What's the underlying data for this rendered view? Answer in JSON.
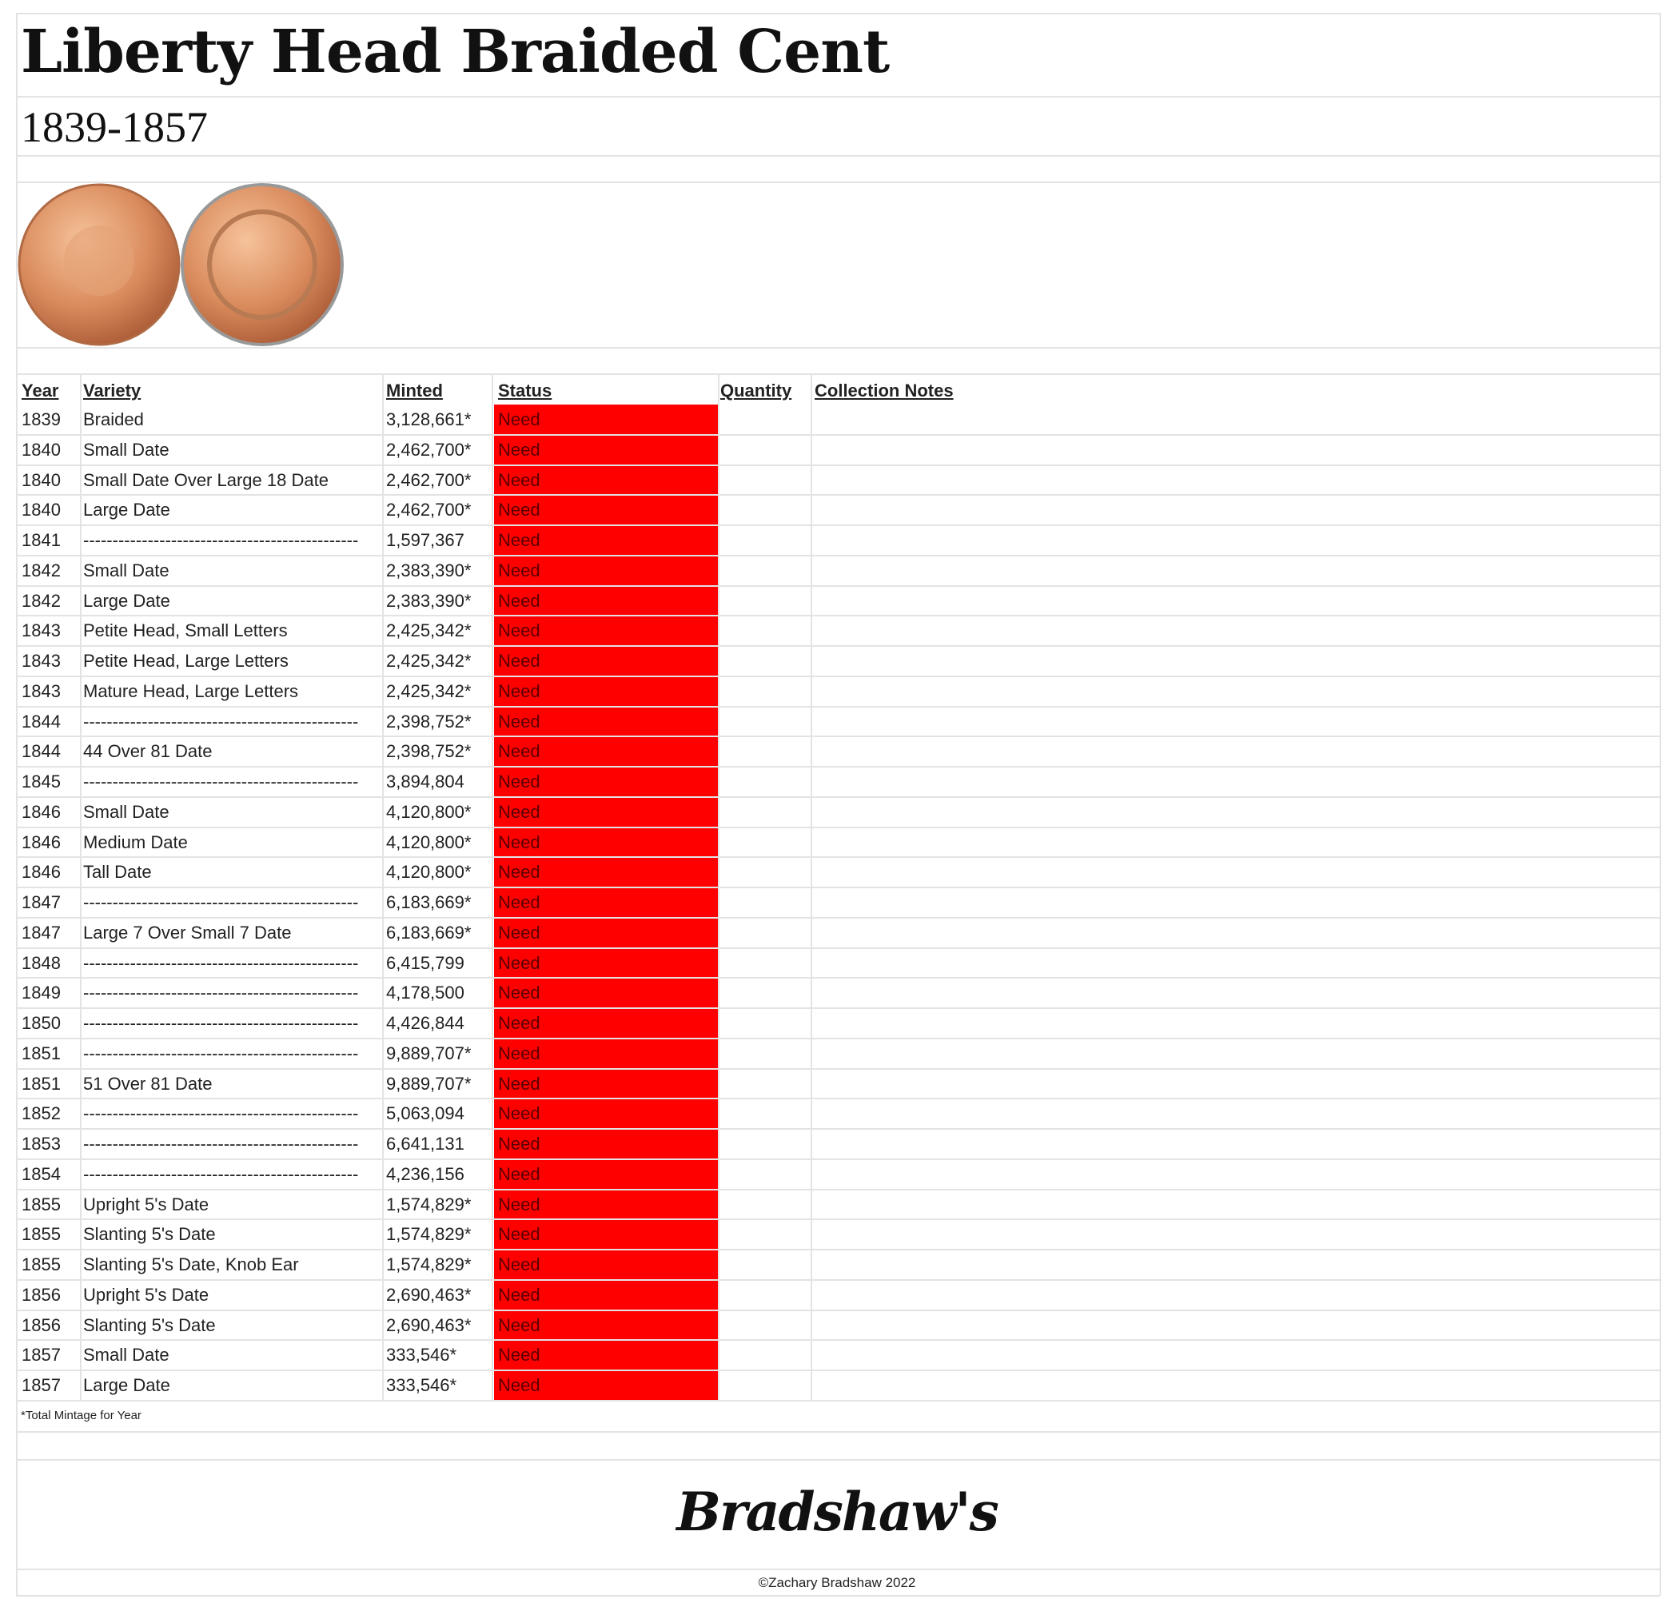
{
  "header": {
    "title": "Liberty Head Braided Cent",
    "subtitle": "1839-1857"
  },
  "table": {
    "columns": [
      "Year",
      "Variety",
      "Minted",
      "Status",
      "Quantity",
      "Collection Notes"
    ],
    "rows": [
      [
        1839,
        "Braided",
        "3,128,661*",
        "Need"
      ],
      [
        1840,
        "Small Date",
        "2,462,700*",
        "Need"
      ],
      [
        1840,
        "Small Date Over Large 18 Date",
        "2,462,700*",
        "Need"
      ],
      [
        1840,
        "Large Date",
        "2,462,700*",
        "Need"
      ],
      [
        1841,
        "-----------------------------------------------",
        "1,597,367",
        "Need"
      ],
      [
        1842,
        "Small Date",
        "2,383,390*",
        "Need"
      ],
      [
        1842,
        "Large Date",
        "2,383,390*",
        "Need"
      ],
      [
        1843,
        "Petite Head, Small Letters",
        "2,425,342*",
        "Need"
      ],
      [
        1843,
        "Petite Head, Large Letters",
        "2,425,342*",
        "Need"
      ],
      [
        1843,
        "Mature Head, Large Letters",
        "2,425,342*",
        "Need"
      ],
      [
        1844,
        "-----------------------------------------------",
        "2,398,752*",
        "Need"
      ],
      [
        1844,
        "44 Over 81 Date",
        "2,398,752*",
        "Need"
      ],
      [
        1845,
        "-----------------------------------------------",
        "3,894,804",
        "Need"
      ],
      [
        1846,
        "Small Date",
        "4,120,800*",
        "Need"
      ],
      [
        1846,
        "Medium Date",
        "4,120,800*",
        "Need"
      ],
      [
        1846,
        "Tall Date",
        "4,120,800*",
        "Need"
      ],
      [
        1847,
        "-----------------------------------------------",
        "6,183,669*",
        "Need"
      ],
      [
        1847,
        "Large 7 Over Small 7 Date",
        "6,183,669*",
        "Need"
      ],
      [
        1848,
        "-----------------------------------------------",
        "6,415,799",
        "Need"
      ],
      [
        1849,
        "-----------------------------------------------",
        "4,178,500",
        "Need"
      ],
      [
        1850,
        "-----------------------------------------------",
        "4,426,844",
        "Need"
      ],
      [
        1851,
        "-----------------------------------------------",
        "9,889,707*",
        "Need"
      ],
      [
        1851,
        "51 Over 81 Date",
        "9,889,707*",
        "Need"
      ],
      [
        1852,
        "-----------------------------------------------",
        "5,063,094",
        "Need"
      ],
      [
        1853,
        "-----------------------------------------------",
        "6,641,131",
        "Need"
      ],
      [
        1854,
        "-----------------------------------------------",
        "4,236,156",
        "Need"
      ],
      [
        1855,
        "Upright 5's Date",
        "1,574,829*",
        "Need"
      ],
      [
        1855,
        "Slanting 5's Date",
        "1,574,829*",
        "Need"
      ],
      [
        1855,
        "Slanting 5's Date, Knob Ear",
        "1,574,829*",
        "Need"
      ],
      [
        1856,
        "Upright 5's Date",
        "2,690,463*",
        "Need"
      ],
      [
        1856,
        "Slanting 5's Date",
        "2,690,463*",
        "Need"
      ],
      [
        1857,
        "Small Date",
        "333,546*",
        "Need"
      ],
      [
        1857,
        "Large Date",
        "333,546*",
        "Need"
      ]
    ]
  },
  "footnote": "*Total Mintage for Year",
  "logo": "Bradshaw's",
  "copyright": "©Zachary Bradshaw 2022"
}
